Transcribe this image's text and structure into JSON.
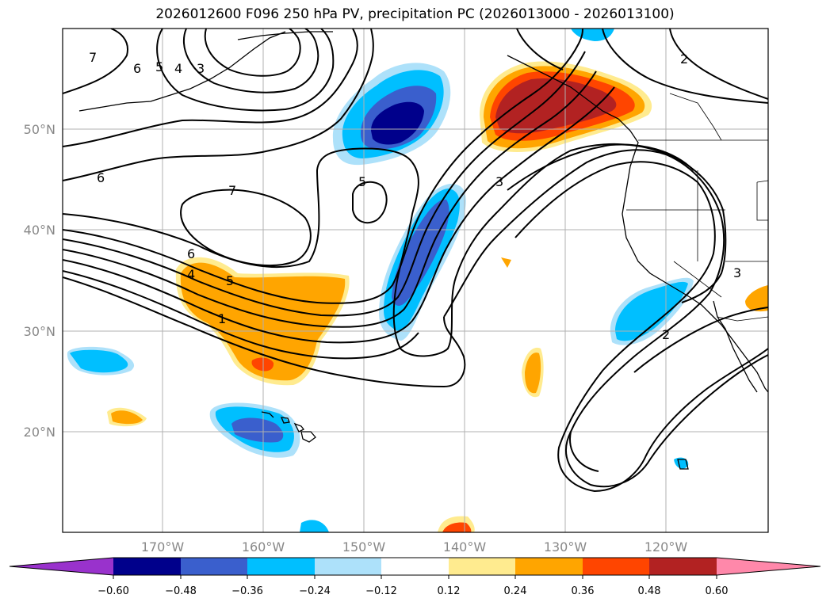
{
  "title": "2026012600 F096 250 hPa PV, precipitation PC (2026013000 - 2026013100)",
  "map": {
    "lat_labels": [
      "50°N",
      "40°N",
      "30°N",
      "20°N"
    ],
    "lon_labels": [
      "170°W",
      "160°W",
      "150°W",
      "140°W",
      "130°W",
      "120°W"
    ],
    "extent": {
      "lon_min": -180,
      "lon_max": -110,
      "lat_min": 10,
      "lat_max": 60
    }
  },
  "colorbar": {
    "ticks": [
      "−0.60",
      "−0.48",
      "−0.36",
      "−0.24",
      "−0.12",
      "0.12",
      "0.24",
      "0.36",
      "0.48",
      "0.60"
    ],
    "colors": [
      "#9932CC",
      "#00008B",
      "#3A5FCD",
      "#00BFFF",
      "#ADE1FA",
      "#FFFFFF",
      "#FFEB8F",
      "#FFA500",
      "#FF4500",
      "#B22222",
      "#FF88AA"
    ]
  },
  "contour_labels": [
    "6",
    "5",
    "4",
    "3",
    "7",
    "6",
    "7",
    "6",
    "4",
    "5",
    "1",
    "5",
    "3",
    "2",
    "2",
    "3"
  ],
  "colors": {
    "strong_neg": "#00008B",
    "mid_neg": "#3A5FCD",
    "light_neg": "#00BFFF",
    "faint_neg": "#ADE1FA",
    "faint_pos": "#FFEB8F",
    "light_pos": "#FFA500",
    "mid_pos": "#FF4500",
    "strong_pos": "#B22222"
  }
}
